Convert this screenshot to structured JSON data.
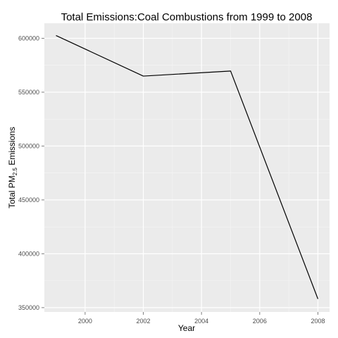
{
  "chart_data": {
    "type": "line",
    "title": "Total Emissions:Coal Combustions from 1999 to 2008",
    "xlabel": "Year",
    "ylabel": {
      "prefix": "Total PM",
      "subscript": "2.5",
      "suffix": " Emissions"
    },
    "x": [
      1999,
      2002,
      2005,
      2008
    ],
    "series": [
      {
        "values": [
          602624,
          564940,
          569655,
          358083
        ]
      }
    ],
    "xlim": [
      1998.6,
      2008.4
    ],
    "ylim": [
      346000,
      614000
    ],
    "x_ticks": [
      2000,
      2002,
      2004,
      2006,
      2008
    ],
    "x_tick_labels": [
      "2000",
      "2002",
      "2004",
      "2006",
      "2008"
    ],
    "y_ticks": [
      350000,
      400000,
      450000,
      500000,
      550000,
      600000
    ],
    "y_tick_labels": [
      "350000",
      "400000",
      "450000",
      "500000",
      "550000",
      "600000"
    ],
    "grid": true,
    "legend": "none",
    "colors": {
      "panel": "#ebebeb",
      "grid_major": "#ffffff",
      "grid_minor": "#f5f5f5",
      "line": "#000000",
      "tick_text": "#4d4d4d"
    }
  }
}
